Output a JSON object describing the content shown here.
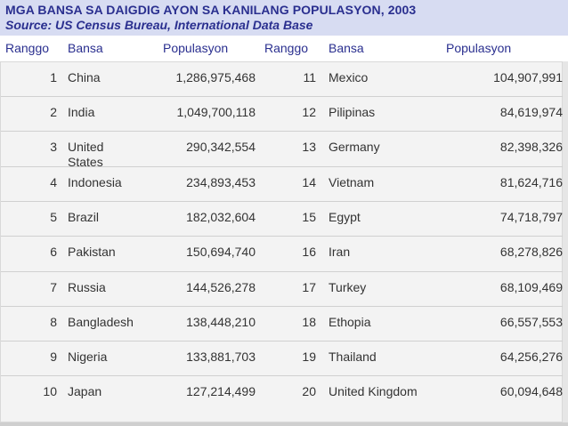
{
  "title": "MGA BANSA SA DAIGDIG AYON SA KANILANG POPULASYON, 2003",
  "subtitle": "Source: US Census Bureau, International Data Base",
  "headers": {
    "rank_left": "Ranggo",
    "country_left": "Bansa",
    "pop_left": "Populasyon",
    "rank_right": "Ranggo",
    "country_right": "Bansa",
    "pop_right": "Populasyon"
  },
  "rows": [
    {
      "left": {
        "rank": "1",
        "country": "China",
        "pop": "1,286,975,468"
      },
      "right": {
        "rank": "11",
        "country": "Mexico",
        "pop": "104,907,991"
      }
    },
    {
      "left": {
        "rank": "2",
        "country": "India",
        "pop": "1,049,700,118"
      },
      "right": {
        "rank": "12",
        "country": "Pilipinas",
        "pop": "84,619,974"
      }
    },
    {
      "left": {
        "rank": "3",
        "country": "United\nStates",
        "pop": "290,342,554"
      },
      "right": {
        "rank": "13",
        "country": "Germany",
        "pop": "82,398,326"
      }
    },
    {
      "left": {
        "rank": "4",
        "country": "Indonesia",
        "pop": "234,893,453"
      },
      "right": {
        "rank": "14",
        "country": "Vietnam",
        "pop": "81,624,716"
      }
    },
    {
      "left": {
        "rank": "5",
        "country": "Brazil",
        "pop": "182,032,604"
      },
      "right": {
        "rank": "15",
        "country": "Egypt",
        "pop": "74,718,797"
      }
    },
    {
      "left": {
        "rank": "6",
        "country": "Pakistan",
        "pop": "150,694,740"
      },
      "right": {
        "rank": "16",
        "country": "Iran",
        "pop": "68,278,826"
      }
    },
    {
      "left": {
        "rank": "7",
        "country": "Russia",
        "pop": "144,526,278"
      },
      "right": {
        "rank": "17",
        "country": "Turkey",
        "pop": "68,109,469"
      }
    },
    {
      "left": {
        "rank": "8",
        "country": "Bangladesh",
        "pop": "138,448,210"
      },
      "right": {
        "rank": "18",
        "country": "Ethopia",
        "pop": "66,557,553"
      }
    },
    {
      "left": {
        "rank": "9",
        "country": "Nigeria",
        "pop": "133,881,703"
      },
      "right": {
        "rank": "19",
        "country": "Thailand",
        "pop": "64,256,276"
      }
    },
    {
      "left": {
        "rank": "10",
        "country": "Japan",
        "pop": "127,214,499"
      },
      "right": {
        "rank": "20",
        "country": "United Kingdom",
        "pop": "60,094,648"
      }
    }
  ]
}
